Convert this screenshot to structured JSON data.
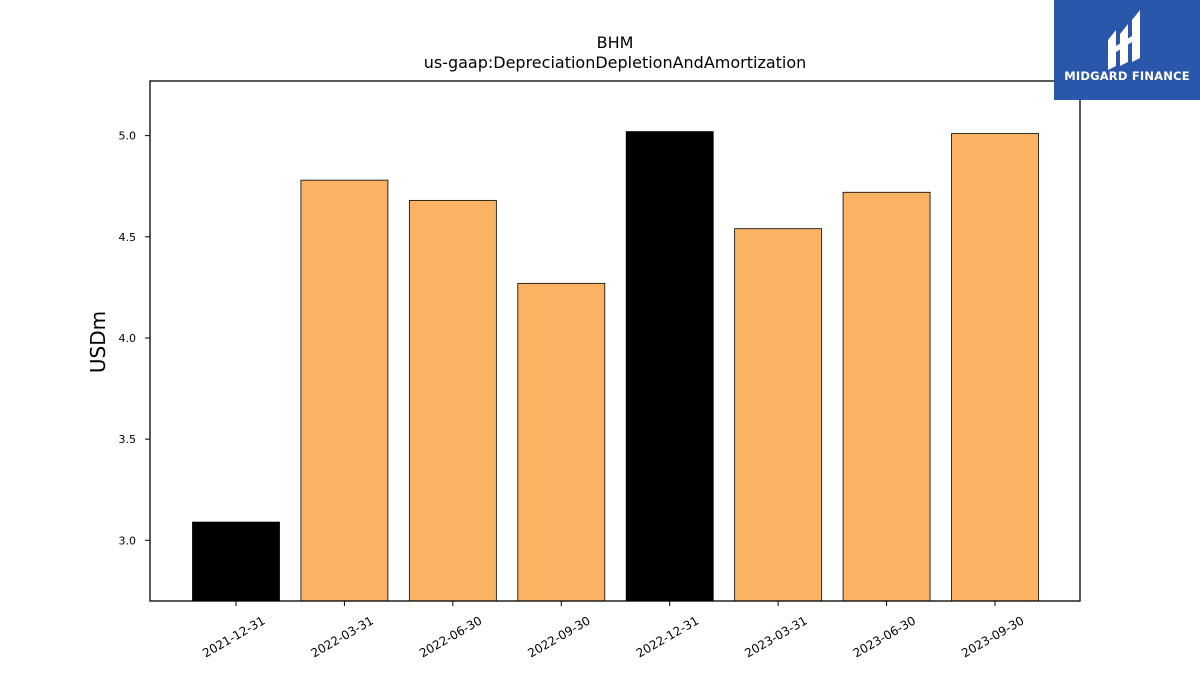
{
  "chart_data": {
    "type": "bar",
    "title": "BHM",
    "subtitle": "us-gaap:DepreciationDepletionAndAmortization",
    "xlabel": "",
    "ylabel": "USDm",
    "ylim": [
      2.7,
      5.27
    ],
    "yticks": [
      "3.0",
      "3.5",
      "4.0",
      "4.5",
      "5.0"
    ],
    "categories": [
      "2021-12-31",
      "2022-03-31",
      "2022-06-30",
      "2022-09-30",
      "2022-12-31",
      "2023-03-31",
      "2023-06-30",
      "2023-09-30"
    ],
    "values": [
      3.09,
      4.78,
      4.68,
      4.27,
      5.02,
      4.54,
      4.72,
      5.01
    ],
    "bar_colors": [
      "#000000",
      "#fbb262",
      "#fbb262",
      "#fbb262",
      "#000000",
      "#fbb262",
      "#fbb262",
      "#fbb262"
    ],
    "grid": false,
    "legend": "none"
  },
  "logo": {
    "text": "MIDGARD FINANCE",
    "background": "#2b57aa",
    "icon": "midgard-logo-icon"
  }
}
